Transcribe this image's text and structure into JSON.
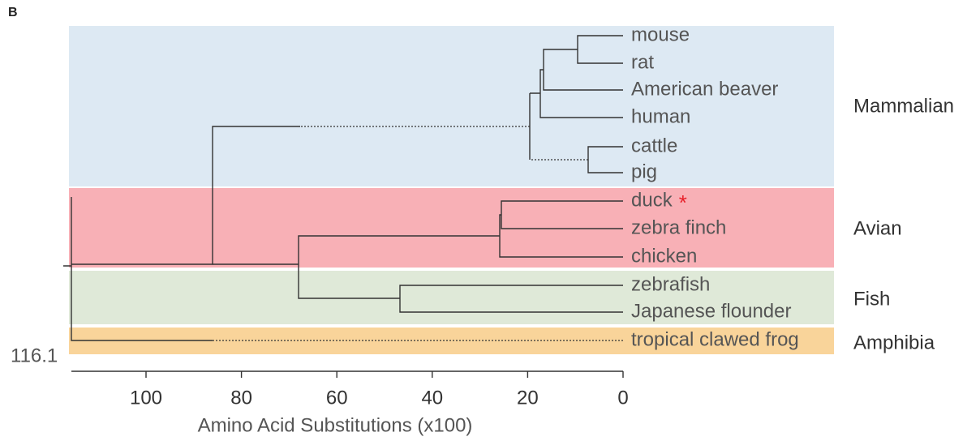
{
  "panel_label": "B",
  "leaves": [
    "mouse",
    "rat",
    "American beaver",
    "human",
    "cattle",
    "pig",
    "duck",
    "zebra finch",
    "chicken",
    "zebrafish",
    "Japanese flounder",
    "tropical clawed frog"
  ],
  "marker": "*",
  "groups": [
    "Mammalian",
    "Avian",
    "Fish",
    "Amphibia"
  ],
  "root_label": 116.1,
  "axis": {
    "title": "Amino Acid Substitutions (x100)",
    "ticks": [
      100,
      80,
      60,
      40,
      20,
      0
    ]
  }
}
